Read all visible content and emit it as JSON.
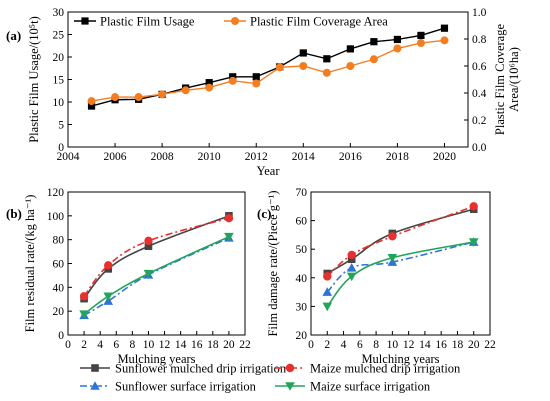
{
  "chart_data": [
    {
      "id": "a",
      "panel_label": "(a)",
      "type": "line",
      "xlabel": "Year",
      "ylabel": "Plastic Film Usage/(10⁵t)",
      "y2label_line1": "Plastic Film Coverage",
      "y2label_line2": "Area/(10⁶ha)",
      "xlim": [
        2004,
        2021
      ],
      "xticks": [
        "2004",
        "2006",
        "2008",
        "2010",
        "2012",
        "2014",
        "2016",
        "2018",
        "2020"
      ],
      "ylim": [
        0,
        30
      ],
      "yticks": [
        "0",
        "5",
        "10",
        "15",
        "20",
        "25",
        "30"
      ],
      "y2lim": [
        0,
        1.0
      ],
      "y2ticks": [
        "0.0",
        "0.2",
        "0.4",
        "0.6",
        "0.8",
        "1.0"
      ],
      "x": [
        2005,
        2006,
        2007,
        2008,
        2009,
        2010,
        2011,
        2012,
        2013,
        2014,
        2015,
        2016,
        2017,
        2018,
        2019,
        2020
      ],
      "series": [
        {
          "name": "Plastic Film Usage",
          "axis": "left",
          "color": "#000000",
          "marker": "square",
          "values": [
            9.1,
            10.5,
            10.6,
            11.7,
            13.1,
            14.3,
            15.6,
            15.6,
            17.8,
            20.9,
            19.6,
            21.8,
            23.4,
            23.9,
            24.8,
            26.4
          ]
        },
        {
          "name": "Plastic Film Coverage Area",
          "axis": "right",
          "color": "#f47d20",
          "marker": "circle",
          "values": [
            0.34,
            0.37,
            0.37,
            0.39,
            0.42,
            0.44,
            0.49,
            0.47,
            0.59,
            0.6,
            0.55,
            0.6,
            0.65,
            0.73,
            0.77,
            0.79
          ]
        }
      ]
    },
    {
      "id": "b",
      "panel_label": "(b)",
      "type": "line",
      "xlabel": "Mulching years",
      "ylabel": "Film residual rate/(kg ha⁻¹)",
      "xlim": [
        0,
        22
      ],
      "xticks": [
        "0",
        "2",
        "4",
        "6",
        "8",
        "10",
        "12",
        "14",
        "16",
        "18",
        "20",
        "22"
      ],
      "ylim": [
        0,
        120
      ],
      "yticks": [
        "0",
        "20",
        "40",
        "60",
        "80",
        "100",
        "120"
      ],
      "x": [
        2,
        5,
        10,
        20
      ],
      "series": [
        {
          "name": "Sunflower mulched drip irrigation",
          "color": "#444444",
          "marker": "square",
          "dash": "solid",
          "values": [
            30.5,
            55.5,
            74.5,
            100.0
          ]
        },
        {
          "name": "Maize mulched drip irrigation",
          "color": "#e8312f",
          "marker": "circle",
          "dash": "dashdot",
          "values": [
            32.5,
            58.5,
            79.0,
            98.0
          ]
        },
        {
          "name": "Sunflower surface irrigation",
          "color": "#2e74d6",
          "marker": "triangle-up",
          "dash": "dashdot",
          "values": [
            16.5,
            28.5,
            50.5,
            81.5
          ]
        },
        {
          "name": "Maize surface irrigation",
          "color": "#22a45a",
          "marker": "triangle-down",
          "dash": "solid",
          "values": [
            17.5,
            32.5,
            51.5,
            82.5
          ]
        }
      ]
    },
    {
      "id": "c",
      "panel_label": "(c)",
      "type": "line",
      "xlabel": "Mulching years",
      "ylabel": "Film damage rate/(Piece g⁻¹)",
      "xlim": [
        0,
        22
      ],
      "xticks": [
        "0",
        "2",
        "4",
        "6",
        "8",
        "10",
        "12",
        "14",
        "16",
        "18",
        "20",
        "22"
      ],
      "ylim": [
        20,
        70
      ],
      "yticks": [
        "20",
        "30",
        "40",
        "50",
        "60",
        "70"
      ],
      "x": [
        2,
        5,
        10,
        20
      ],
      "series": [
        {
          "name": "Sunflower mulched drip irrigation",
          "color": "#444444",
          "marker": "square",
          "dash": "solid",
          "values": [
            41.5,
            46.5,
            55.5,
            64.0
          ]
        },
        {
          "name": "Maize mulched drip irrigation",
          "color": "#e8312f",
          "marker": "circle",
          "dash": "dashdot",
          "values": [
            40.5,
            48.0,
            54.5,
            65.0
          ]
        },
        {
          "name": "Sunflower surface irrigation",
          "color": "#2e74d6",
          "marker": "triangle-up",
          "dash": "dashdot",
          "values": [
            35.0,
            43.5,
            45.5,
            52.5
          ]
        },
        {
          "name": "Maize surface irrigation",
          "color": "#22a45a",
          "marker": "triangle-down",
          "dash": "solid",
          "values": [
            30.0,
            40.5,
            47.0,
            52.5
          ]
        }
      ]
    }
  ]
}
